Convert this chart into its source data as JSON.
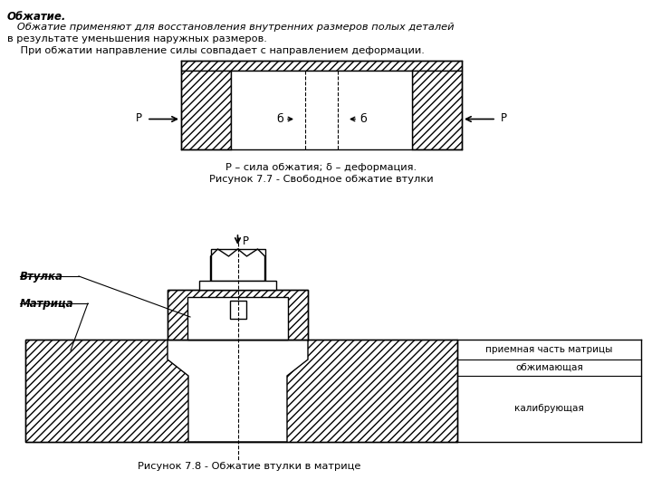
{
  "title_bold": "Обжатие.",
  "text_line1": "   Обжатие применяют для восстановления внутренних размеров полых деталей",
  "text_line2": "в результате уменьшения наружных размеров.",
  "text_line3": "    При обжатии направление силы совпадает с направлением деформации.",
  "caption1": "Р – сила обжатия; δ – деформация.",
  "caption2": "Рисунок 7.7 - Свободное обжатие втулки",
  "caption3": "Рисунок 7.8 - Обжатие втулки в матрице",
  "label_vtulka": "Втулка",
  "label_matrica": "Матрица",
  "label_priemnaya": "приемная часть матрицы",
  "label_obzhimayushchaya": "обжимающая",
  "label_kalibruyushchaya": "калибрующая",
  "bg_color": "#ffffff",
  "line_color": "#000000"
}
